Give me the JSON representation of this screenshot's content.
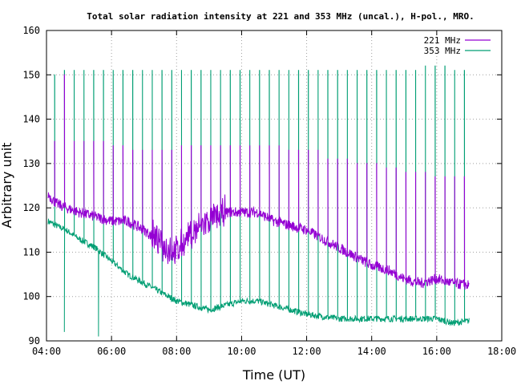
{
  "chart_data": {
    "type": "line",
    "title": "Total solar radiation intensity at 221 and 353 MHz (uncal.), H-pol., MRO.",
    "xlabel": "Time (UT)",
    "ylabel": "Arbitrary unit",
    "xlim": [
      4,
      18
    ],
    "ylim": [
      90,
      160
    ],
    "x_ticks": [
      "04:00",
      "06:00",
      "08:00",
      "10:00",
      "12:00",
      "14:00",
      "16:00",
      "18:00"
    ],
    "y_ticks": [
      "90",
      "100",
      "110",
      "120",
      "130",
      "140",
      "150",
      "160"
    ],
    "grid": true,
    "legend_position": "top-right",
    "x_units": "hours UT",
    "series": [
      {
        "name": "221 MHz",
        "color": "#9400d3",
        "x": [
          4.05,
          4.3,
          4.6,
          5.0,
          5.5,
          6.0,
          6.5,
          7.0,
          7.5,
          8.0,
          8.3,
          8.6,
          9.0,
          9.5,
          10.0,
          10.5,
          11.0,
          11.5,
          12.0,
          12.5,
          13.0,
          13.5,
          14.0,
          14.5,
          15.0,
          15.5,
          16.0,
          16.5,
          17.0
        ],
        "values": [
          123,
          121,
          120,
          119,
          118,
          117,
          117,
          115,
          112,
          110,
          113,
          115,
          117,
          119,
          119,
          119,
          117,
          116,
          115,
          113,
          111,
          109,
          107,
          106,
          104,
          103,
          104,
          103,
          102.5
        ],
        "spikes_x": [
          4.25,
          4.55,
          4.85,
          5.15,
          5.45,
          5.75,
          6.05,
          6.35,
          6.65,
          6.95,
          7.25,
          7.55,
          7.85,
          8.15,
          8.45,
          8.75,
          9.05,
          9.35,
          9.65,
          9.95,
          10.25,
          10.55,
          10.85,
          11.15,
          11.45,
          11.75,
          12.05,
          12.35,
          12.65,
          12.95,
          13.25,
          13.55,
          13.85,
          14.15,
          14.45,
          14.75,
          15.05,
          15.35,
          15.65,
          15.95,
          16.25,
          16.55,
          16.85
        ],
        "spikes_peak": [
          135,
          150,
          135,
          135,
          135,
          135,
          134,
          134,
          133,
          133,
          133,
          133,
          133,
          134,
          134,
          134,
          134,
          134,
          134,
          134,
          134,
          134,
          134,
          134,
          133,
          133,
          133,
          133,
          131,
          131,
          131,
          130,
          130,
          130,
          129,
          129,
          128,
          128,
          128,
          127,
          127,
          127,
          127
        ]
      },
      {
        "name": "353 MHz",
        "color": "#009e73",
        "x": [
          4.05,
          4.3,
          4.6,
          5.0,
          5.5,
          6.0,
          6.5,
          7.0,
          7.5,
          8.0,
          8.5,
          9.0,
          9.5,
          10.0,
          10.5,
          11.0,
          11.5,
          12.0,
          12.5,
          13.0,
          13.5,
          14.0,
          14.5,
          15.0,
          15.5,
          16.0,
          16.5,
          17.0
        ],
        "values": [
          117,
          116,
          115,
          113,
          111,
          108,
          105,
          103,
          101,
          99,
          98,
          97,
          98,
          99,
          99,
          98,
          97,
          96,
          95.5,
          95,
          95,
          95,
          95,
          95,
          95,
          95,
          94,
          94.5
        ],
        "spikes_x": [
          4.25,
          4.55,
          4.85,
          5.15,
          5.45,
          5.75,
          6.05,
          6.35,
          6.65,
          6.95,
          7.25,
          7.55,
          7.85,
          8.15,
          8.45,
          8.75,
          9.05,
          9.35,
          9.65,
          9.95,
          10.25,
          10.55,
          10.85,
          11.15,
          11.45,
          11.75,
          12.05,
          12.35,
          12.65,
          12.95,
          13.25,
          13.55,
          13.85,
          14.15,
          14.45,
          14.75,
          15.05,
          15.35,
          15.65,
          15.95,
          16.25,
          16.55,
          16.85
        ],
        "spikes_peak": [
          150,
          151,
          151,
          151,
          151,
          151,
          151,
          151,
          151,
          151,
          151,
          151,
          151,
          151,
          151,
          151,
          151,
          151,
          151,
          151,
          151,
          151,
          151,
          151,
          151,
          151,
          151,
          151,
          151,
          151,
          151,
          151,
          151,
          151,
          151,
          151,
          151,
          151,
          152,
          152,
          152,
          151,
          151
        ],
        "dips_x": [
          4.55,
          5.6
        ],
        "dips_value": [
          92,
          91
        ]
      }
    ]
  }
}
